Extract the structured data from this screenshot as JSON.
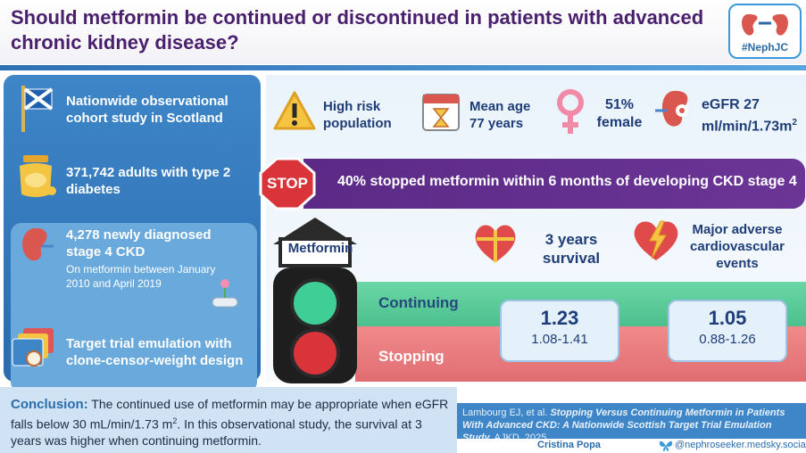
{
  "header": {
    "title": "Should metformin be continued or discontinued in patients with advanced chronic kidney disease?",
    "logo_text": "#NephJC"
  },
  "left_panel": {
    "items": [
      {
        "text": "Nationwide observational cohort study in Scotland",
        "icon": "scotland-flag-icon"
      },
      {
        "text": "371,742 adults with type 2 diabetes",
        "icon": "honey-jar-icon"
      },
      {
        "text": "4,278 newly diagnosed stage 4 CKD",
        "sub": "On metformin between January 2010 and April 2019",
        "icon": "kidney-icon"
      },
      {
        "text": "Target trial emulation with clone-censor-weight design",
        "icon": "folders-icon"
      }
    ]
  },
  "stats": [
    {
      "text": "High risk population",
      "icon": "warning-icon"
    },
    {
      "text": "Mean age 77 years",
      "icon": "calendar-icon"
    },
    {
      "line1": "51%",
      "line2": "female",
      "icon": "female-symbol-icon"
    },
    {
      "line1": "eGFR 27",
      "line2": "ml/min/1.73m",
      "sup": "2",
      "icon": "kidney-gear-icon"
    }
  ],
  "stop_banner": {
    "sign": "STOP",
    "text": "40% stopped metformin within 6 months of developing CKD stage 4"
  },
  "outcomes": {
    "metformin_label": "Metformin",
    "survival": {
      "label": "3 years survival",
      "icon": "heart-gift-icon"
    },
    "mace": {
      "label": "Major adverse cardiovascular events",
      "icon": "heart-lightning-icon"
    },
    "rows": {
      "continuing": "Continuing",
      "stopping": "Stopping"
    },
    "results": [
      {
        "value": "1.23",
        "ci": "1.08-1.41"
      },
      {
        "value": "1.05",
        "ci": "0.88-1.26"
      }
    ]
  },
  "conclusion": {
    "label": "Conclusion:",
    "text_part1": " The continued use of metformin may be appropriate when eGFR falls below 30 mL/min/1.73 m",
    "sup": "2",
    "text_part2": ". In this observational study, the survival at 3 years was higher when continuing metformin."
  },
  "citation": {
    "authors": "Lambourg EJ, et al. ",
    "title": "Stopping Versus Continuing Metformin in Patients With Advanced CKD: A Nationwide Scottish Target Trial Emulation Study.",
    "journal": " AJKD, 2025",
    "credit_name": "Cristina Popa",
    "credit_handle": "@nephroseeker.medsky.social"
  },
  "colors": {
    "purple": "#5b2a86",
    "blue": "#3e86c8",
    "green": "#4cc08e",
    "red": "#e06d70"
  }
}
